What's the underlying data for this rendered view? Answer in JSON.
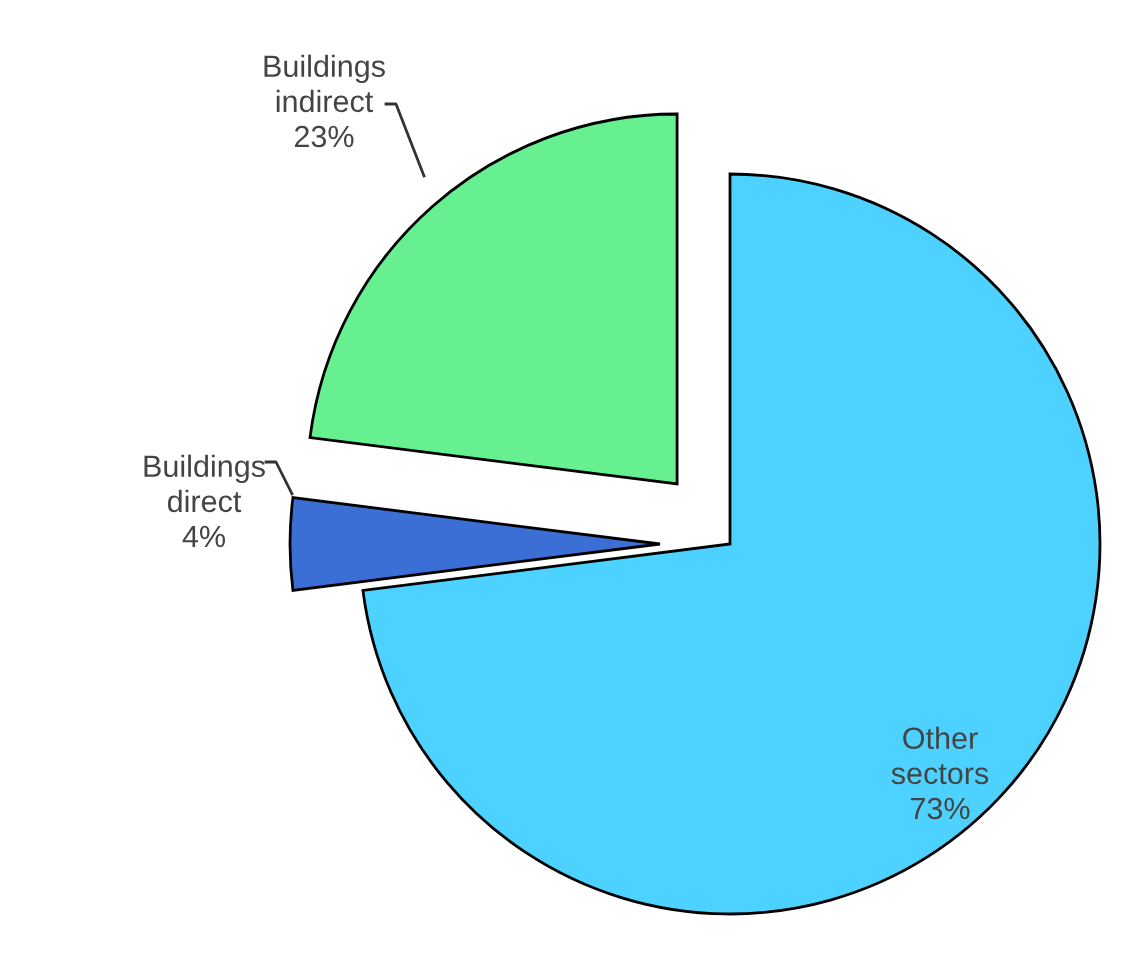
{
  "chart_data": {
    "type": "pie",
    "categories": [
      "Other sectors",
      "Buildings direct",
      "Buildings indirect"
    ],
    "values": [
      73,
      4,
      23
    ],
    "colors": [
      "#4dd2ff",
      "#3c6fd6",
      "#66f08f"
    ],
    "value_labels": [
      "73%",
      "4%",
      "23%"
    ]
  }
}
